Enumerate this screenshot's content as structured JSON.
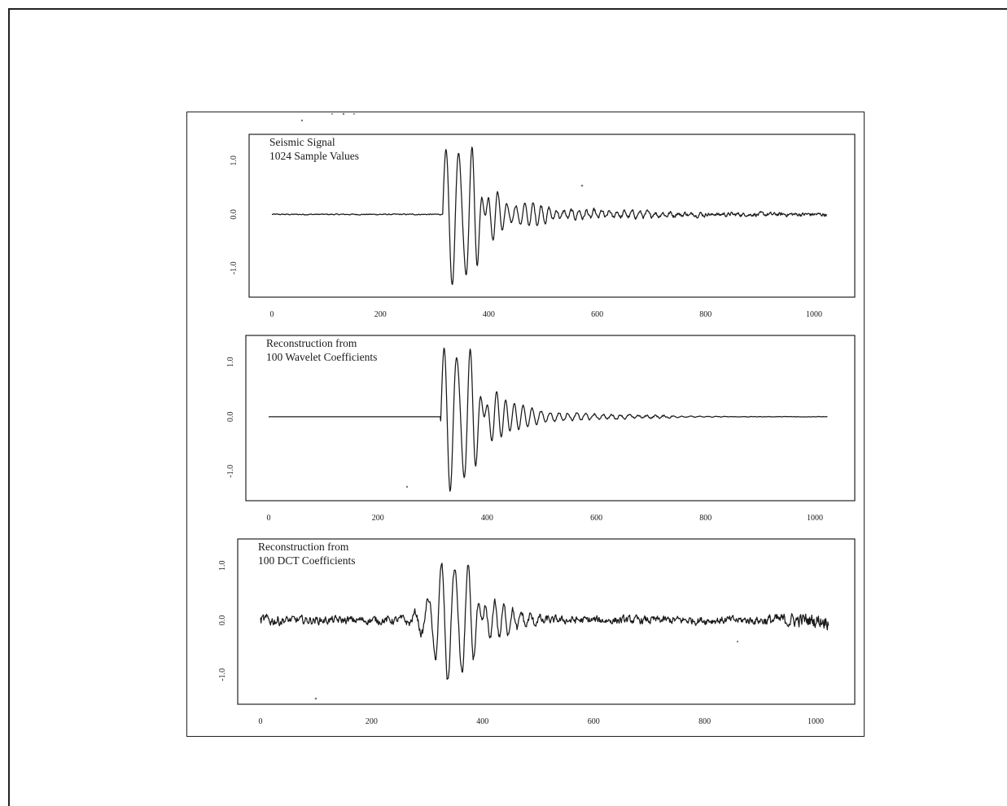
{
  "chart_data": [
    {
      "type": "line",
      "title_lines": [
        "Seismic Signal",
        "1024 Sample Values"
      ],
      "xlabel": "",
      "ylabel": "",
      "xlim": [
        0,
        1024
      ],
      "ylim": [
        -1.45,
        1.4
      ],
      "x_ticks": [
        0,
        200,
        400,
        600,
        800,
        1000
      ],
      "x_tick_labels": [
        "0",
        "200",
        "400",
        "600",
        "800",
        "1000"
      ],
      "y_ticks": [
        -1.0,
        0.0,
        1.0
      ],
      "y_tick_labels": [
        "-1.0",
        "0.0",
        "1.0"
      ],
      "grid": false,
      "signal": {
        "onset": 320,
        "bursts": [
          {
            "center": 340,
            "amplitude": 1.3,
            "width": 35,
            "period": 24
          },
          {
            "center": 400,
            "amplitude": 0.35,
            "width": 55,
            "period": 16
          },
          {
            "center": 470,
            "amplitude": 0.09,
            "width": 180,
            "period": 14
          }
        ],
        "noise": 0.02,
        "tail_noise": 0.03,
        "pre_onset_noise": 0.008
      }
    },
    {
      "type": "line",
      "title_lines": [
        "Reconstruction from",
        "100 Wavelet Coefficients"
      ],
      "xlabel": "",
      "ylabel": "",
      "xlim": [
        0,
        1024
      ],
      "ylim": [
        -1.45,
        1.4
      ],
      "x_ticks": [
        0,
        200,
        400,
        600,
        800,
        1000
      ],
      "x_tick_labels": [
        "0",
        "200",
        "400",
        "600",
        "800",
        "1000"
      ],
      "y_ticks": [
        -1.0,
        0.0,
        1.0
      ],
      "y_tick_labels": [
        "-1.0",
        "0.0",
        "1.0"
      ],
      "grid": false,
      "signal": {
        "onset": 320,
        "bursts": [
          {
            "center": 340,
            "amplitude": 1.3,
            "width": 35,
            "period": 24
          },
          {
            "center": 400,
            "amplitude": 0.35,
            "width": 55,
            "period": 16
          },
          {
            "center": 470,
            "amplitude": 0.07,
            "width": 150,
            "period": 16
          }
        ],
        "noise": 0.01,
        "tail_noise": 0.015,
        "pre_onset_noise": 0.0,
        "flat_after": 740
      }
    },
    {
      "type": "line",
      "title_lines": [
        "Reconstruction from",
        "100 DCT Coefficients"
      ],
      "xlabel": "",
      "ylabel": "",
      "xlim": [
        0,
        1024
      ],
      "ylim": [
        -1.45,
        1.4
      ],
      "x_ticks": [
        0,
        200,
        400,
        600,
        800,
        1000
      ],
      "x_tick_labels": [
        "0",
        "200",
        "400",
        "600",
        "800",
        "1000"
      ],
      "y_ticks": [
        -1.0,
        0.0,
        1.0
      ],
      "y_tick_labels": [
        "-1.0",
        "0.0",
        "1.0"
      ],
      "grid": false,
      "signal": {
        "onset": 0,
        "bursts": [
          {
            "center": 345,
            "amplitude": 1.1,
            "width": 32,
            "period": 24
          },
          {
            "center": 405,
            "amplitude": 0.32,
            "width": 50,
            "period": 16
          }
        ],
        "noise": 0.06,
        "tail_noise": 0.06,
        "pre_onset_noise": 0.05,
        "edge_noise": 0.08
      }
    }
  ]
}
